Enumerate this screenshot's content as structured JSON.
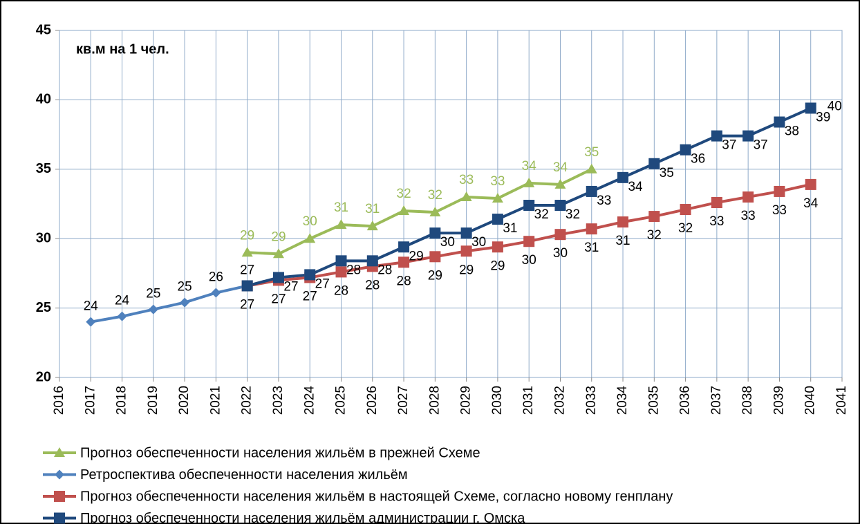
{
  "chart_data": {
    "type": "line",
    "title": "кв.м на 1 чел.",
    "xlim": [
      2016,
      2041
    ],
    "xticks": [
      2016,
      2017,
      2018,
      2019,
      2020,
      2021,
      2022,
      2023,
      2024,
      2025,
      2026,
      2027,
      2028,
      2029,
      2030,
      2031,
      2032,
      2033,
      2034,
      2035,
      2036,
      2037,
      2038,
      2039,
      2040,
      2041
    ],
    "ylim": [
      20,
      45
    ],
    "yticks": [
      20,
      25,
      30,
      35,
      40,
      45
    ],
    "grid": true,
    "legend": "bottom",
    "annotations": [
      "40"
    ],
    "series": [
      {
        "name": "Прогноз обеспеченности населения жильём в прежней Схеме",
        "color": "#9bbb59",
        "marker": "triangle",
        "x": [
          2022,
          2023,
          2024,
          2025,
          2026,
          2027,
          2028,
          2029,
          2030,
          2031,
          2032,
          2033
        ],
        "values": [
          29.0,
          28.9,
          30.0,
          31.0,
          30.9,
          32.0,
          31.9,
          33.0,
          32.9,
          34.0,
          33.9,
          35.0
        ],
        "value_labels": [
          "29",
          "29",
          "30",
          "31",
          "31",
          "32",
          "32",
          "33",
          "33",
          "34",
          "34",
          "35"
        ]
      },
      {
        "name": "Ретроспектива обеспеченности населения жильём",
        "color": "#4f81bd",
        "marker": "diamond",
        "x": [
          2017,
          2018,
          2019,
          2020,
          2021,
          2022
        ],
        "values": [
          24.0,
          24.4,
          24.9,
          25.4,
          26.1,
          26.6
        ],
        "value_labels": [
          "24",
          "24",
          "25",
          "25",
          "26",
          "27"
        ]
      },
      {
        "name": "Прогноз обеспеченности населения жильём в настоящей Схеме, согласно новому генплану",
        "color": "#c0504d",
        "marker": "square",
        "x": [
          2022,
          2023,
          2024,
          2025,
          2026,
          2027,
          2028,
          2029,
          2030,
          2031,
          2032,
          2033,
          2034,
          2035,
          2036,
          2037,
          2038,
          2039,
          2040
        ],
        "values": [
          26.6,
          27.0,
          27.2,
          27.6,
          28.0,
          28.3,
          28.7,
          29.1,
          29.4,
          29.8,
          30.3,
          30.7,
          31.2,
          31.6,
          32.1,
          32.6,
          33.0,
          33.4,
          33.9
        ],
        "value_labels": [
          "27",
          "27",
          "27",
          "28",
          "28",
          "28",
          "29",
          "29",
          "29",
          "30",
          "30",
          "31",
          "31",
          "32",
          "32",
          "33",
          "33",
          "33",
          "34"
        ]
      },
      {
        "name": "Прогноз обеспеченности населения жильём администрации г. Омска",
        "color": "#1f497d",
        "marker": "square",
        "x": [
          2022,
          2023,
          2024,
          2025,
          2026,
          2027,
          2028,
          2029,
          2030,
          2031,
          2032,
          2033,
          2034,
          2035,
          2036,
          2037,
          2038,
          2039,
          2040
        ],
        "values": [
          26.6,
          27.2,
          27.4,
          28.4,
          28.4,
          29.4,
          30.4,
          30.4,
          31.4,
          32.4,
          32.4,
          33.4,
          34.4,
          35.4,
          36.4,
          37.4,
          37.4,
          38.4,
          39.4
        ],
        "value_labels": [
          null,
          "27",
          "27",
          "28",
          "28",
          "29",
          "30",
          "30",
          "31",
          "32",
          "32",
          "33",
          "34",
          "35",
          "36",
          "37",
          "37",
          "38",
          "39"
        ]
      }
    ]
  }
}
